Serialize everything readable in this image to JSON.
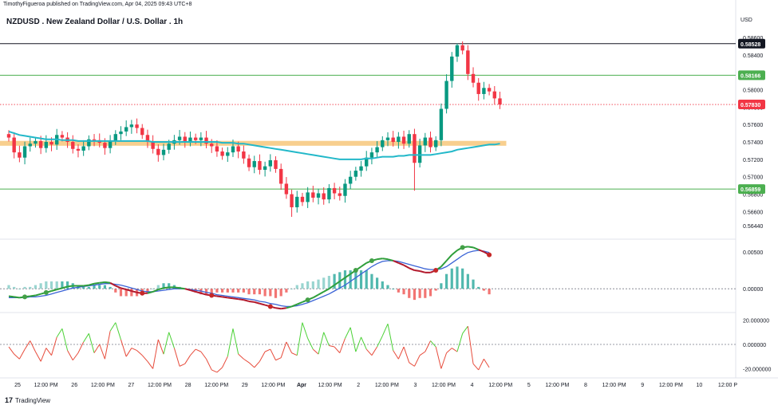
{
  "header": {
    "publisher": "TimothyFigueroa published on TradingView.com, Apr 04, 2025 09:43 UTC+8"
  },
  "chart_title": "NZDUSD . New Zealand Dollar / U.S. Dollar . 1h",
  "currency_label": "USD",
  "brand": {
    "logo": "17",
    "name": "TradingView"
  },
  "colors": {
    "up": "#089981",
    "down": "#f23645",
    "ema": "#22b8c9",
    "zone": "#f7c77a",
    "black_line": "#131722",
    "green_line": "#4caf50",
    "red_dotted": "#f23645",
    "macd_green": "#2e9e3a",
    "macd_red": "#b2182b",
    "signal_blue": "#3a63d6",
    "rsi_green": "#4cd137",
    "rsi_red": "#e74c3c"
  },
  "chart_data": [
    {
      "type": "candlestick",
      "y_ticks": [
        "0.58600",
        "0.58400",
        "0.58200",
        "0.58000",
        "0.57800",
        "0.57600",
        "0.57400",
        "0.57200",
        "0.57000",
        "0.56800",
        "0.56600",
        "0.56440"
      ],
      "ylim": [
        0.5632,
        0.587
      ],
      "x_ticks": [
        "25",
        "12:00 PM",
        "26",
        "12:00 PM",
        "27",
        "12:00 PM",
        "28",
        "12:00 PM",
        "29",
        "12:00 PM",
        "Apr",
        "12:00 PM",
        "2",
        "12:00 PM",
        "3",
        "12:00 PM",
        "4",
        "12:00 PM",
        "5",
        "12:00 PM",
        "8",
        "12:00 PM",
        "9",
        "12:00 PM",
        "10",
        "12:00 P"
      ],
      "price_tags": [
        {
          "label": "0.58528",
          "value": 0.58528,
          "color": "#131722"
        },
        {
          "label": "0.58166",
          "value": 0.58166,
          "color": "#4caf50"
        },
        {
          "label": "0.57830",
          "value": 0.5783,
          "color": "#f23645"
        },
        {
          "label": "0.56859",
          "value": 0.56859,
          "color": "#4caf50"
        }
      ],
      "horizontal_lines": [
        {
          "value": 0.58528,
          "style": "solid",
          "color": "#131722"
        },
        {
          "value": 0.58166,
          "style": "solid",
          "color": "#4caf50"
        },
        {
          "value": 0.56859,
          "style": "solid",
          "color": "#4caf50"
        },
        {
          "value": 0.5783,
          "style": "dotted",
          "color": "#f23645"
        }
      ],
      "zone": {
        "from": 0.57356,
        "to": 0.57412,
        "x_end": 118
      },
      "close": [
        0.5745,
        0.5728,
        0.5722,
        0.5735,
        0.5738,
        0.5741,
        0.5733,
        0.574,
        0.5737,
        0.5748,
        0.5745,
        0.574,
        0.5732,
        0.573,
        0.5735,
        0.5743,
        0.5742,
        0.5739,
        0.5733,
        0.5741,
        0.5749,
        0.5752,
        0.5757,
        0.576,
        0.5756,
        0.5748,
        0.574,
        0.5732,
        0.5725,
        0.5731,
        0.5738,
        0.5742,
        0.5746,
        0.5741,
        0.5745,
        0.5742,
        0.5745,
        0.5738,
        0.5735,
        0.5729,
        0.5724,
        0.5728,
        0.5735,
        0.5729,
        0.5721,
        0.5711,
        0.5718,
        0.5708,
        0.5712,
        0.5719,
        0.5709,
        0.5692,
        0.568,
        0.5665,
        0.5677,
        0.5671,
        0.5682,
        0.5676,
        0.5681,
        0.5674,
        0.5687,
        0.5681,
        0.5678,
        0.5692,
        0.57,
        0.5707,
        0.5712,
        0.5722,
        0.5728,
        0.5734,
        0.5742,
        0.5745,
        0.574,
        0.5746,
        0.5738,
        0.5749,
        0.5716,
        0.5736,
        0.5745,
        0.5734,
        0.5742,
        0.5778,
        0.581,
        0.5838,
        0.5851,
        0.5845,
        0.5818,
        0.5808,
        0.5795,
        0.5802,
        0.5798,
        0.579,
        0.5783
      ],
      "ema": [
        0.5752,
        0.575,
        0.5748,
        0.5747,
        0.5746,
        0.5745,
        0.5744,
        0.5743,
        0.5743,
        0.5743,
        0.5742,
        0.5742,
        0.5742,
        0.5741,
        0.5741,
        0.5741,
        0.5741,
        0.5741,
        0.5741,
        0.5741,
        0.5741,
        0.5741,
        0.5741,
        0.5741,
        0.5741,
        0.5741,
        0.5741,
        0.574,
        0.574,
        0.574,
        0.574,
        0.574,
        0.574,
        0.574,
        0.574,
        0.574,
        0.574,
        0.574,
        0.574,
        0.574,
        0.5739,
        0.5739,
        0.5739,
        0.5738,
        0.5738,
        0.5737,
        0.5736,
        0.5735,
        0.5734,
        0.5733,
        0.5732,
        0.5731,
        0.573,
        0.5729,
        0.5728,
        0.5727,
        0.5726,
        0.5725,
        0.5724,
        0.5723,
        0.5722,
        0.5721,
        0.572,
        0.572,
        0.572,
        0.572,
        0.572,
        0.5721,
        0.5721,
        0.5722,
        0.5723,
        0.5723,
        0.5723,
        0.5724,
        0.5724,
        0.5725,
        0.5725,
        0.5725,
        0.5725,
        0.5725,
        0.5726,
        0.5727,
        0.5728,
        0.5729,
        0.5731,
        0.5732,
        0.5733,
        0.5734,
        0.5735,
        0.5736,
        0.5737,
        0.5737,
        0.5738
      ]
    },
    {
      "type": "line",
      "name": "MACD panel",
      "y_ticks": [
        "0.00500",
        "0.00000"
      ],
      "ylim": [
        -0.003,
        0.0065
      ],
      "macd": [
        -0.001,
        -0.0011,
        -0.0012,
        -0.0011,
        -0.001,
        -0.0009,
        -0.0007,
        -0.0005,
        -0.0003,
        -0.0001,
        0.0001,
        0.0003,
        0.0004,
        0.0004,
        0.0004,
        0.0005,
        0.0007,
        0.0008,
        0.0009,
        0.0008,
        0.0004,
        0.0001,
        -0.0001,
        -0.0003,
        -0.0005,
        -0.0006,
        -0.0006,
        -0.0004,
        -0.0001,
        0.0001,
        0.0002,
        0.0002,
        0.0001,
        0.0,
        -0.0002,
        -0.0004,
        -0.0006,
        -0.0008,
        -0.0009,
        -0.001,
        -0.0011,
        -0.0012,
        -0.0013,
        -0.0014,
        -0.0015,
        -0.0017,
        -0.0018,
        -0.002,
        -0.0022,
        -0.0024,
        -0.0026,
        -0.0027,
        -0.0026,
        -0.0024,
        -0.0021,
        -0.0018,
        -0.0015,
        -0.0012,
        -0.0008,
        -0.0004,
        0.0,
        0.0005,
        0.001,
        0.0015,
        0.002,
        0.0025,
        0.003,
        0.0035,
        0.0038,
        0.004,
        0.0041,
        0.004,
        0.0038,
        0.0035,
        0.0032,
        0.0028,
        0.0025,
        0.0024,
        0.0022,
        0.0022,
        0.0025,
        0.003,
        0.0038,
        0.0046,
        0.0052,
        0.0056,
        0.0057,
        0.0056,
        0.0053,
        0.005,
        0.0046
      ],
      "signal": [
        -0.0012,
        -0.0012,
        -0.0012,
        -0.0012,
        -0.0011,
        -0.0011,
        -0.001,
        -0.0009,
        -0.0007,
        -0.0005,
        -0.0003,
        -0.0001,
        0.0001,
        0.0002,
        0.0003,
        0.0004,
        0.0005,
        0.0006,
        0.0007,
        0.0007,
        0.0006,
        0.0005,
        0.0003,
        0.0001,
        -0.0001,
        -0.0003,
        -0.0004,
        -0.0004,
        -0.0003,
        -0.0002,
        -0.0001,
        0.0,
        0.0,
        0.0,
        -0.0001,
        -0.0002,
        -0.0003,
        -0.0005,
        -0.0006,
        -0.0008,
        -0.0009,
        -0.001,
        -0.0011,
        -0.0012,
        -0.0013,
        -0.0014,
        -0.0015,
        -0.0017,
        -0.0018,
        -0.002,
        -0.0021,
        -0.0023,
        -0.0024,
        -0.0024,
        -0.0023,
        -0.0021,
        -0.0019,
        -0.0016,
        -0.0013,
        -0.001,
        -0.0007,
        -0.0003,
        0.0001,
        0.0005,
        0.001,
        0.0015,
        0.002,
        0.0025,
        0.003,
        0.0034,
        0.0037,
        0.0038,
        0.0038,
        0.0037,
        0.0035,
        0.0033,
        0.0031,
        0.0029,
        0.0027,
        0.0026,
        0.0026,
        0.0027,
        0.003,
        0.0035,
        0.004,
        0.0045,
        0.0049,
        0.0051,
        0.0052,
        0.0051,
        0.0049
      ],
      "cross_points": [
        3,
        7,
        25,
        38,
        49,
        56,
        65,
        68,
        80,
        85,
        90
      ]
    },
    {
      "type": "line",
      "name": "Oscillator panel",
      "y_ticks": [
        "20.000000",
        "0.000000",
        "-20.000000"
      ],
      "ylim": [
        -25,
        25
      ],
      "values": [
        -2,
        -8,
        -12,
        -4,
        3,
        -6,
        -14,
        -3,
        -9,
        6,
        13,
        -5,
        -13,
        -7,
        2,
        9,
        -7,
        0,
        -12,
        11,
        18,
        4,
        -10,
        -3,
        -5,
        -9,
        -14,
        -20,
        4,
        -8,
        10,
        -3,
        -18,
        -16,
        -9,
        -4,
        -6,
        -12,
        -21,
        -23,
        -19,
        -10,
        13,
        -8,
        -12,
        -15,
        -19,
        -14,
        -6,
        -4,
        -13,
        -11,
        2,
        -7,
        -9,
        18,
        5,
        -4,
        -8,
        10,
        -1,
        -2,
        -7,
        5,
        14,
        -6,
        6,
        -4,
        -9,
        -2,
        7,
        17,
        -5,
        -12,
        -2,
        -15,
        -18,
        -9,
        -6,
        3,
        -2,
        -20,
        -7,
        -3,
        -6,
        9,
        15,
        -16,
        -21,
        -12,
        -19
      ]
    }
  ]
}
